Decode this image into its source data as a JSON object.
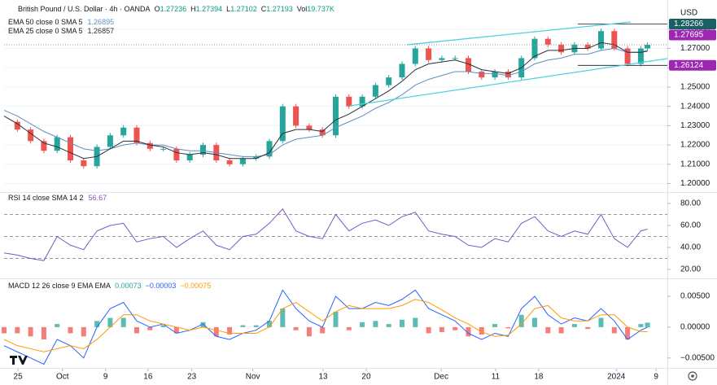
{
  "chart_data": [
    {
      "type": "candlestick",
      "title": "British Pound / U.S. Dollar · 4h · OANDA",
      "ohlc": [
        {
          "label": "O",
          "value": 1.27236
        },
        {
          "label": "H",
          "value": 1.27394
        },
        {
          "label": "L",
          "value": 1.27102
        },
        {
          "label": "C",
          "value": 1.27193
        },
        {
          "label": "Vol",
          "value": "19.737K"
        }
      ],
      "currency": "USD",
      "up_color": "#26a69a",
      "down_color": "#ef5350",
      "xlim": [
        0,
        100
      ],
      "ylim": [
        1.196,
        1.293
      ],
      "yticks": [
        {
          "value": 1.2,
          "label": "1.20000"
        },
        {
          "value": 1.21,
          "label": "1.21000"
        },
        {
          "value": 1.22,
          "label": "1.22000"
        },
        {
          "value": 1.23,
          "label": "1.23000"
        },
        {
          "value": 1.24,
          "label": "1.24000"
        },
        {
          "value": 1.25,
          "label": "1.25000"
        },
        {
          "value": 1.26,
          "label": "1.26000"
        },
        {
          "value": 1.27,
          "label": "1.27000"
        },
        {
          "value": 1.28,
          "label": "1.28000"
        }
      ],
      "grid": true,
      "x": [
        0,
        2,
        4,
        6,
        8,
        10,
        12,
        14,
        16,
        18,
        20,
        22,
        24,
        26,
        28,
        30,
        32,
        34,
        36,
        38,
        40,
        42,
        44,
        46,
        48,
        50,
        52,
        54,
        56,
        58,
        60,
        62,
        64,
        66,
        68,
        70,
        72,
        74,
        76,
        78,
        80,
        82,
        84,
        86,
        88,
        90,
        92,
        94,
        96,
        97
      ],
      "values": [
        1.232,
        1.228,
        1.222,
        1.217,
        1.224,
        1.212,
        1.209,
        1.219,
        1.225,
        1.229,
        1.221,
        1.218,
        1.218,
        1.212,
        1.215,
        1.22,
        1.212,
        1.21,
        1.213,
        1.214,
        1.222,
        1.24,
        1.23,
        1.228,
        1.225,
        1.245,
        1.24,
        1.245,
        1.251,
        1.255,
        1.262,
        1.27,
        1.264,
        1.265,
        1.265,
        1.258,
        1.255,
        1.258,
        1.255,
        1.265,
        1.275,
        1.272,
        1.268,
        1.272,
        1.27,
        1.279,
        1.27,
        1.262,
        1.27,
        1.2719
      ],
      "series": [
        {
          "name": "EMA 50 close 0 SMA 5",
          "color": "#5d8fbf",
          "last": 1.26895,
          "values": [
            1.238,
            1.235,
            1.231,
            1.227,
            1.224,
            1.221,
            1.218,
            1.217,
            1.218,
            1.22,
            1.221,
            1.22,
            1.22,
            1.218,
            1.217,
            1.217,
            1.216,
            1.215,
            1.214,
            1.214,
            1.215,
            1.22,
            1.223,
            1.224,
            1.225,
            1.229,
            1.232,
            1.235,
            1.239,
            1.242,
            1.246,
            1.251,
            1.254,
            1.256,
            1.258,
            1.258,
            1.257,
            1.257,
            1.256,
            1.258,
            1.262,
            1.264,
            1.265,
            1.267,
            1.267,
            1.269,
            1.27,
            1.268,
            1.268,
            1.26895
          ]
        },
        {
          "name": "EMA 25 close 0 SMA 5",
          "color": "#2a2e39",
          "last": 1.26857,
          "values": [
            1.235,
            1.231,
            1.226,
            1.221,
            1.219,
            1.216,
            1.213,
            1.214,
            1.218,
            1.222,
            1.222,
            1.22,
            1.219,
            1.216,
            1.215,
            1.216,
            1.215,
            1.213,
            1.213,
            1.213,
            1.216,
            1.226,
            1.228,
            1.228,
            1.227,
            1.233,
            1.236,
            1.24,
            1.244,
            1.248,
            1.253,
            1.259,
            1.262,
            1.263,
            1.264,
            1.262,
            1.259,
            1.258,
            1.257,
            1.26,
            1.266,
            1.269,
            1.269,
            1.27,
            1.27,
            1.273,
            1.272,
            1.268,
            1.268,
            1.26857
          ]
        }
      ],
      "price_lines": [
        {
          "value": 1.28266,
          "color": "#1b5e63"
        },
        {
          "value": 1.27695,
          "color": "#9c27b0"
        },
        {
          "value": 1.26124,
          "color": "#9c27b0"
        }
      ]
    },
    {
      "type": "line",
      "title": "RSI 14 close SMA 14 2",
      "color": "#7e57c2",
      "last": 56.67,
      "xlim": [
        0,
        100
      ],
      "ylim": [
        13.3,
        88.9
      ],
      "yticks": [
        {
          "value": 20,
          "label": "20.00"
        },
        {
          "value": 40,
          "label": "40.00"
        },
        {
          "value": 60,
          "label": "60.00"
        },
        {
          "value": 80,
          "label": "80.00"
        }
      ],
      "levels": [
        70,
        50,
        30
      ],
      "x": [
        0,
        2,
        4,
        6,
        8,
        10,
        12,
        14,
        16,
        18,
        20,
        22,
        24,
        26,
        28,
        30,
        32,
        34,
        36,
        38,
        40,
        42,
        44,
        46,
        48,
        50,
        52,
        54,
        56,
        58,
        60,
        62,
        64,
        66,
        68,
        70,
        72,
        74,
        76,
        78,
        80,
        82,
        84,
        86,
        88,
        90,
        92,
        94,
        96,
        97
      ],
      "values": [
        35,
        33,
        30,
        28,
        50,
        42,
        38,
        55,
        60,
        62,
        45,
        48,
        50,
        40,
        48,
        55,
        42,
        38,
        50,
        52,
        62,
        75,
        55,
        50,
        48,
        70,
        55,
        62,
        65,
        60,
        68,
        72,
        55,
        52,
        50,
        42,
        40,
        48,
        45,
        62,
        68,
        55,
        50,
        55,
        52,
        70,
        48,
        40,
        55,
        56.67
      ]
    },
    {
      "type": "macd",
      "title": "MACD 12 26 close 9 EMA EMA",
      "xlim": [
        0,
        100
      ],
      "ylim": [
        -0.007,
        0.0075
      ],
      "yticks": [
        {
          "value": -0.005,
          "label": "−0.00500"
        },
        {
          "value": 0,
          "label": "0.00000"
        },
        {
          "value": 0.005,
          "label": "0.00500"
        }
      ],
      "xticks": [
        {
          "value": 2.1,
          "label": "25"
        },
        {
          "value": 8.8,
          "label": "Oct"
        },
        {
          "value": 15.3,
          "label": "9"
        },
        {
          "value": 21.7,
          "label": "16"
        },
        {
          "value": 28.3,
          "label": "23"
        },
        {
          "value": 37.5,
          "label": "Nov"
        },
        {
          "value": 48.1,
          "label": "13"
        },
        {
          "value": 54.6,
          "label": "20"
        },
        {
          "value": 65.9,
          "label": "Dec"
        },
        {
          "value": 74.1,
          "label": "11"
        },
        {
          "value": 80.6,
          "label": "18"
        },
        {
          "value": 92.3,
          "label": "2024"
        },
        {
          "value": 98.3,
          "label": "9"
        }
      ],
      "x": [
        0,
        2,
        4,
        6,
        8,
        10,
        12,
        14,
        16,
        18,
        20,
        22,
        24,
        26,
        28,
        30,
        32,
        34,
        36,
        38,
        40,
        42,
        44,
        46,
        48,
        50,
        52,
        54,
        56,
        58,
        60,
        62,
        64,
        66,
        68,
        70,
        72,
        74,
        76,
        78,
        80,
        82,
        84,
        86,
        88,
        90,
        92,
        94,
        96,
        97
      ],
      "series": [
        {
          "color": "#26a69a",
          "negative_color": "#ef5350",
          "legend_value": "0.00073",
          "values": [
            -0.001,
            -0.001,
            -0.0015,
            -0.002,
            0.0005,
            -0.001,
            -0.0015,
            0.001,
            0.0015,
            0.0015,
            -0.001,
            -0.0005,
            0.0003,
            -0.001,
            0,
            0.0008,
            -0.0015,
            -0.0012,
            0.0003,
            0.0003,
            0.001,
            0.003,
            -0.0005,
            -0.0015,
            -0.001,
            0.0025,
            -0.0005,
            0.0008,
            0.001,
            0.0005,
            0.0012,
            0.0015,
            -0.001,
            -0.0008,
            -0.0005,
            -0.0015,
            -0.0012,
            0.0005,
            -0.0002,
            0.002,
            0.0015,
            -0.001,
            -0.001,
            0.0005,
            -0.0003,
            0.0015,
            -0.001,
            -0.002,
            0.0005,
            0.00073
          ]
        },
        {
          "color": "#2962ff",
          "legend_value": "−0.00003",
          "values": [
            -0.003,
            -0.004,
            -0.005,
            -0.006,
            -0.002,
            -0.003,
            -0.005,
            0,
            0.003,
            0.004,
            0.001,
            0,
            0.0005,
            -0.001,
            -0.0005,
            0.0005,
            -0.0015,
            -0.002,
            -0.001,
            -0.0005,
            0.001,
            0.006,
            0.003,
            0.001,
            0,
            0.005,
            0.003,
            0.003,
            0.004,
            0.0035,
            0.0045,
            0.006,
            0.003,
            0.002,
            0.001,
            -0.001,
            -0.002,
            -0.001,
            -0.0015,
            0.003,
            0.005,
            0.002,
            0.0005,
            0.0015,
            0.001,
            0.003,
            0.001,
            -0.002,
            -0.0005,
            -3e-05
          ]
        },
        {
          "color": "#ff9800",
          "legend_value": "−0.00075",
          "values": [
            -0.002,
            -0.003,
            -0.0035,
            -0.004,
            -0.0035,
            -0.003,
            -0.0035,
            -0.002,
            0,
            0.002,
            0.002,
            0.001,
            0.0005,
            0,
            -0.0005,
            0,
            -0.0005,
            -0.001,
            -0.001,
            -0.001,
            0,
            0.003,
            0.004,
            0.0025,
            0.001,
            0.0025,
            0.0035,
            0.003,
            0.003,
            0.003,
            0.0035,
            0.0045,
            0.004,
            0.0028,
            0.0015,
            0.0005,
            -0.0008,
            -0.0015,
            -0.0013,
            0.0005,
            0.003,
            0.0035,
            0.0015,
            0.001,
            0.001,
            0.002,
            0.002,
            0,
            -0.0007,
            -0.00075
          ]
        }
      ]
    }
  ]
}
